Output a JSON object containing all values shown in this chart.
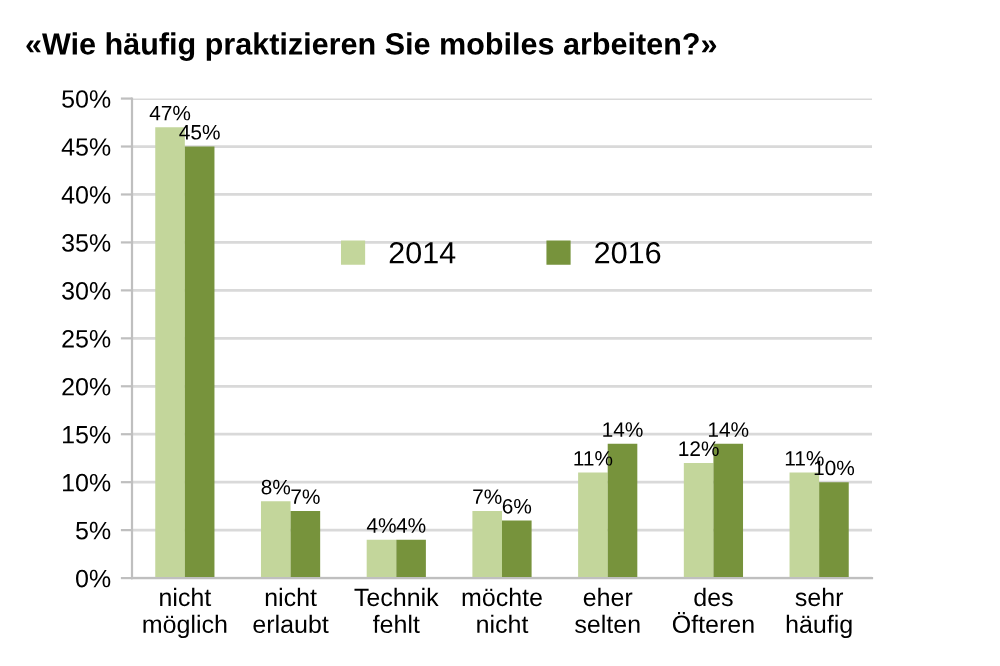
{
  "chart_data": {
    "type": "bar",
    "title": "«Wie häufig praktizieren Sie mobiles arbeiten?»",
    "categories": [
      "nicht\nmöglich",
      "nicht\nerlaubt",
      "Technik\nfehlt",
      "möchte\nnicht",
      "eher\nselten",
      "des\nÖfteren",
      "sehr\nhäufig"
    ],
    "series": [
      {
        "name": "2014",
        "color": "#c3d69b",
        "values": [
          47,
          8,
          4,
          7,
          11,
          12,
          11
        ],
        "value_labels": [
          "47%",
          "8%",
          "4%",
          "7%",
          "11%",
          "12%",
          "11%"
        ]
      },
      {
        "name": "2016",
        "color": "#77933c",
        "values": [
          45,
          7,
          4,
          6,
          14,
          14,
          10
        ],
        "value_labels": [
          "45%",
          "7%",
          "4%",
          "6%",
          "14%",
          "14%",
          "10%"
        ]
      }
    ],
    "ylim": [
      0,
      50
    ],
    "yticks": [
      {
        "value": 0,
        "label": "0%"
      },
      {
        "value": 5,
        "label": "5%"
      },
      {
        "value": 10,
        "label": "10%"
      },
      {
        "value": 15,
        "label": "15%"
      },
      {
        "value": 20,
        "label": "20%"
      },
      {
        "value": 25,
        "label": "25%"
      },
      {
        "value": 30,
        "label": "30%"
      },
      {
        "value": 35,
        "label": "35%"
      },
      {
        "value": 40,
        "label": "40%"
      },
      {
        "value": 45,
        "label": "45%"
      },
      {
        "value": 50,
        "label": "50%"
      }
    ],
    "grid": "y",
    "legend": "top"
  }
}
